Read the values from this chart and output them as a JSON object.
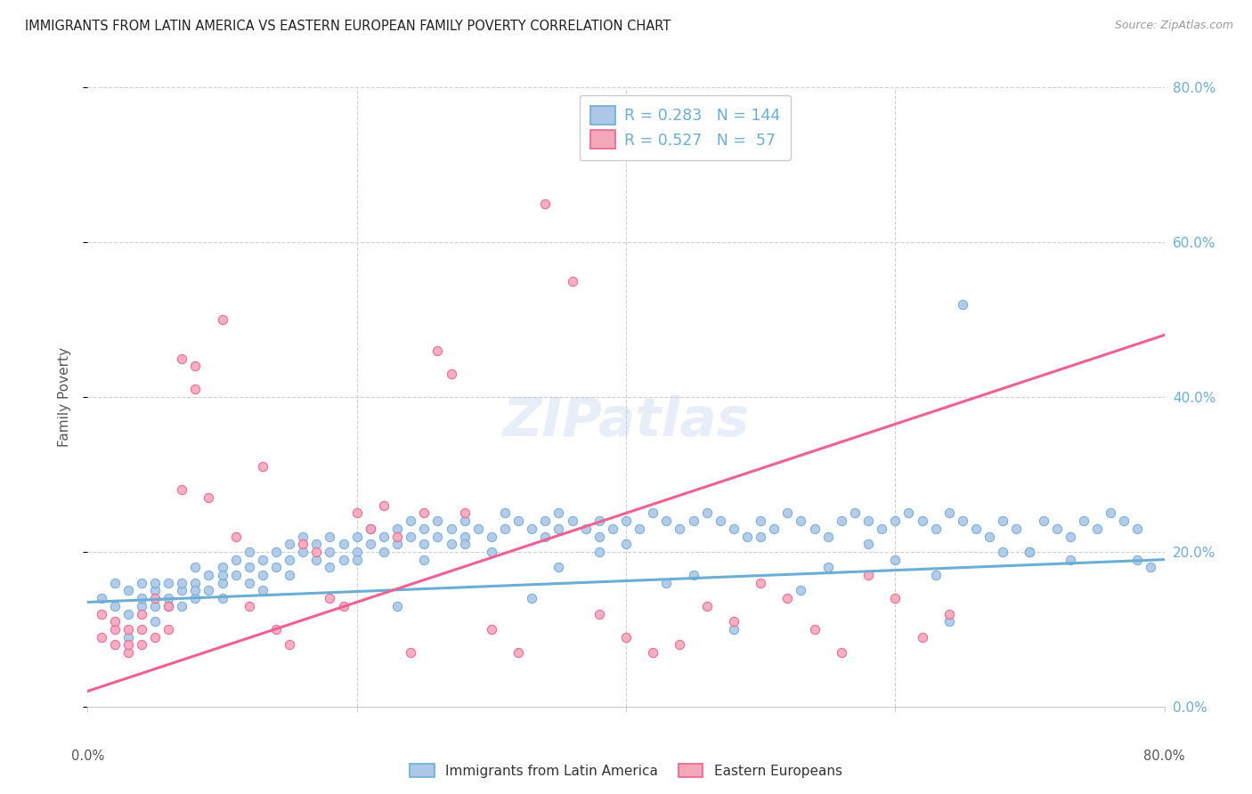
{
  "title": "IMMIGRANTS FROM LATIN AMERICA VS EASTERN EUROPEAN FAMILY POVERTY CORRELATION CHART",
  "source": "Source: ZipAtlas.com",
  "ylabel": "Family Poverty",
  "ytick_values": [
    0.0,
    0.2,
    0.4,
    0.6,
    0.8
  ],
  "xlim": [
    0.0,
    0.8
  ],
  "ylim": [
    0.0,
    0.8
  ],
  "legend_entries": [
    {
      "label": "Immigrants from Latin America",
      "R": "0.283",
      "N": "144"
    },
    {
      "label": "Eastern Europeans",
      "R": "0.527",
      "N": " 57"
    }
  ],
  "watermark": "ZIPatlas",
  "blue_scatter_x": [
    0.01,
    0.02,
    0.02,
    0.03,
    0.03,
    0.04,
    0.04,
    0.04,
    0.05,
    0.05,
    0.05,
    0.06,
    0.06,
    0.06,
    0.07,
    0.07,
    0.07,
    0.08,
    0.08,
    0.08,
    0.09,
    0.09,
    0.1,
    0.1,
    0.1,
    0.11,
    0.11,
    0.12,
    0.12,
    0.12,
    0.13,
    0.13,
    0.14,
    0.14,
    0.15,
    0.15,
    0.16,
    0.16,
    0.17,
    0.17,
    0.18,
    0.18,
    0.19,
    0.19,
    0.2,
    0.2,
    0.21,
    0.21,
    0.22,
    0.22,
    0.23,
    0.23,
    0.24,
    0.24,
    0.25,
    0.25,
    0.26,
    0.26,
    0.27,
    0.27,
    0.28,
    0.28,
    0.29,
    0.3,
    0.31,
    0.31,
    0.32,
    0.33,
    0.34,
    0.34,
    0.35,
    0.35,
    0.36,
    0.37,
    0.38,
    0.38,
    0.39,
    0.4,
    0.41,
    0.42,
    0.43,
    0.44,
    0.45,
    0.46,
    0.47,
    0.48,
    0.49,
    0.5,
    0.51,
    0.52,
    0.53,
    0.54,
    0.55,
    0.56,
    0.57,
    0.58,
    0.59,
    0.6,
    0.61,
    0.62,
    0.63,
    0.64,
    0.65,
    0.65,
    0.66,
    0.67,
    0.68,
    0.69,
    0.7,
    0.71,
    0.72,
    0.73,
    0.74,
    0.75,
    0.76,
    0.77,
    0.78,
    0.79,
    0.5,
    0.4,
    0.3,
    0.2,
    0.1,
    0.6,
    0.7,
    0.55,
    0.45,
    0.35,
    0.25,
    0.15,
    0.05,
    0.48,
    0.64,
    0.78,
    0.68,
    0.58,
    0.38,
    0.28,
    0.18,
    0.08,
    0.33,
    0.43,
    0.53,
    0.63,
    0.73,
    0.23,
    0.13,
    0.03
  ],
  "blue_scatter_y": [
    0.14,
    0.13,
    0.16,
    0.12,
    0.15,
    0.13,
    0.16,
    0.14,
    0.15,
    0.13,
    0.11,
    0.14,
    0.16,
    0.13,
    0.15,
    0.13,
    0.16,
    0.14,
    0.16,
    0.18,
    0.15,
    0.17,
    0.16,
    0.18,
    0.14,
    0.17,
    0.19,
    0.16,
    0.18,
    0.2,
    0.17,
    0.19,
    0.18,
    0.2,
    0.19,
    0.21,
    0.2,
    0.22,
    0.21,
    0.19,
    0.2,
    0.22,
    0.21,
    0.19,
    0.2,
    0.22,
    0.21,
    0.23,
    0.22,
    0.2,
    0.21,
    0.23,
    0.22,
    0.24,
    0.23,
    0.21,
    0.22,
    0.24,
    0.23,
    0.21,
    0.22,
    0.24,
    0.23,
    0.22,
    0.23,
    0.25,
    0.24,
    0.23,
    0.22,
    0.24,
    0.23,
    0.25,
    0.24,
    0.23,
    0.22,
    0.24,
    0.23,
    0.24,
    0.23,
    0.25,
    0.24,
    0.23,
    0.24,
    0.25,
    0.24,
    0.23,
    0.22,
    0.24,
    0.23,
    0.25,
    0.24,
    0.23,
    0.22,
    0.24,
    0.25,
    0.24,
    0.23,
    0.24,
    0.25,
    0.24,
    0.23,
    0.25,
    0.52,
    0.24,
    0.23,
    0.22,
    0.24,
    0.23,
    0.2,
    0.24,
    0.23,
    0.22,
    0.24,
    0.23,
    0.25,
    0.24,
    0.23,
    0.18,
    0.22,
    0.21,
    0.2,
    0.19,
    0.17,
    0.19,
    0.2,
    0.18,
    0.17,
    0.18,
    0.19,
    0.17,
    0.16,
    0.1,
    0.11,
    0.19,
    0.2,
    0.21,
    0.2,
    0.21,
    0.18,
    0.15,
    0.14,
    0.16,
    0.15,
    0.17,
    0.19,
    0.13,
    0.15,
    0.09
  ],
  "pink_scatter_x": [
    0.01,
    0.01,
    0.02,
    0.02,
    0.02,
    0.03,
    0.03,
    0.03,
    0.04,
    0.04,
    0.04,
    0.05,
    0.05,
    0.06,
    0.06,
    0.07,
    0.07,
    0.08,
    0.08,
    0.09,
    0.1,
    0.11,
    0.12,
    0.13,
    0.14,
    0.15,
    0.16,
    0.17,
    0.18,
    0.19,
    0.2,
    0.21,
    0.22,
    0.23,
    0.24,
    0.25,
    0.26,
    0.27,
    0.28,
    0.3,
    0.32,
    0.34,
    0.36,
    0.38,
    0.4,
    0.42,
    0.44,
    0.46,
    0.48,
    0.5,
    0.52,
    0.54,
    0.56,
    0.58,
    0.6,
    0.62,
    0.64
  ],
  "pink_scatter_y": [
    0.12,
    0.09,
    0.1,
    0.08,
    0.11,
    0.07,
    0.1,
    0.08,
    0.12,
    0.1,
    0.08,
    0.14,
    0.09,
    0.13,
    0.1,
    0.45,
    0.28,
    0.44,
    0.41,
    0.27,
    0.5,
    0.22,
    0.13,
    0.31,
    0.1,
    0.08,
    0.21,
    0.2,
    0.14,
    0.13,
    0.25,
    0.23,
    0.26,
    0.22,
    0.07,
    0.25,
    0.46,
    0.43,
    0.25,
    0.1,
    0.07,
    0.65,
    0.55,
    0.12,
    0.09,
    0.07,
    0.08,
    0.13,
    0.11,
    0.16,
    0.14,
    0.1,
    0.07,
    0.17,
    0.14,
    0.09,
    0.12
  ],
  "blue_line_x": [
    0.0,
    0.8
  ],
  "blue_line_y": [
    0.135,
    0.19
  ],
  "pink_line_x": [
    0.0,
    0.8
  ],
  "pink_line_y": [
    0.02,
    0.48
  ],
  "blue_dot_color": "#6aaed6",
  "blue_fill_color": "#aec6e8",
  "pink_dot_color": "#f06090",
  "pink_fill_color": "#f4a7b9",
  "grid_color": "#d0d0d0",
  "axis_color": "#cccccc",
  "background_color": "#ffffff",
  "right_tick_color": "#6aaed6",
  "text_color": "#333333",
  "source_color": "#999999",
  "ylabel_color": "#555555"
}
